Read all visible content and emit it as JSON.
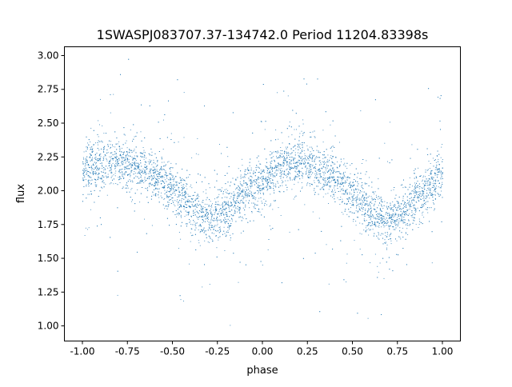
{
  "chart_data": {
    "type": "scatter",
    "title": "1SWASPJ083707.37-134742.0 Period 11204.83398s",
    "xlabel": "phase",
    "ylabel": "flux",
    "xlim": [
      -1.1,
      1.1
    ],
    "ylim": [
      0.888,
      3.065
    ],
    "xticks": [
      "-1.00",
      "-0.75",
      "-0.50",
      "-0.25",
      "0.00",
      "0.25",
      "0.50",
      "0.75",
      "1.00"
    ],
    "xtick_values": [
      -1.0,
      -0.75,
      -0.5,
      -0.25,
      0,
      0.25,
      0.5,
      0.75,
      1.0
    ],
    "yticks": [
      "1.00",
      "1.25",
      "1.50",
      "1.75",
      "2.00",
      "2.25",
      "2.50",
      "2.75",
      "3.00"
    ],
    "ytick_values": [
      1.0,
      1.25,
      1.5,
      1.75,
      2.0,
      2.25,
      2.5,
      2.75,
      3.0
    ],
    "grid": false,
    "marker_color": "#1f77b4",
    "trend": {
      "phase": [
        -1.0,
        -0.9,
        -0.8,
        -0.7,
        -0.6,
        -0.5,
        -0.4,
        -0.3,
        -0.2,
        -0.1,
        0.0,
        0.1,
        0.2,
        0.3,
        0.4,
        0.5,
        0.6,
        0.7,
        0.8,
        0.9,
        1.0
      ],
      "flux": [
        2.15,
        2.2,
        2.22,
        2.18,
        2.12,
        2.02,
        1.88,
        1.78,
        1.85,
        1.98,
        2.08,
        2.18,
        2.22,
        2.18,
        2.1,
        1.98,
        1.85,
        1.76,
        1.88,
        2.0,
        2.12
      ]
    }
  }
}
